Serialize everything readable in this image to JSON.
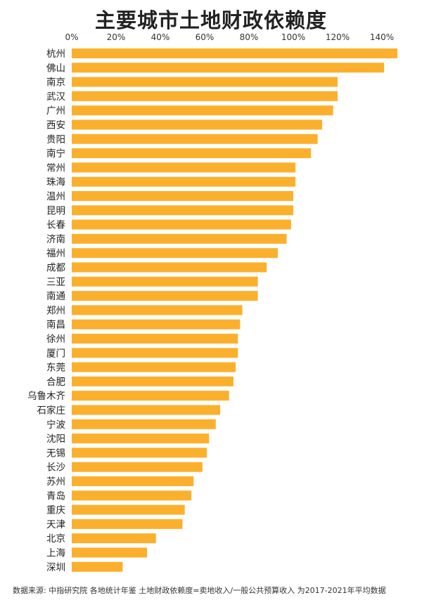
{
  "chart_data": {
    "type": "bar",
    "orientation": "horizontal",
    "title": "主要城市土地财政依赖度",
    "xlabel": "",
    "ylabel": "",
    "xlim": [
      0,
      150
    ],
    "x_ticks": [
      "0%",
      "20%",
      "40%",
      "60%",
      "80%",
      "100%",
      "120%",
      "140%"
    ],
    "tick_values": [
      0,
      20,
      40,
      60,
      80,
      100,
      120,
      140
    ],
    "axis_position": "top",
    "grid": false,
    "bar_color": "#fbb02d",
    "categories": [
      "杭州",
      "佛山",
      "南京",
      "武汉",
      "广州",
      "西安",
      "贵阳",
      "南宁",
      "常州",
      "珠海",
      "温州",
      "昆明",
      "长春",
      "济南",
      "福州",
      "成都",
      "三亚",
      "南通",
      "郑州",
      "南昌",
      "徐州",
      "厦门",
      "东莞",
      "合肥",
      "乌鲁木齐",
      "石家庄",
      "宁波",
      "沈阳",
      "无锡",
      "长沙",
      "苏州",
      "青岛",
      "重庆",
      "天津",
      "北京",
      "上海",
      "深圳"
    ],
    "values": [
      147,
      141,
      120,
      120,
      118,
      113,
      111,
      108,
      101,
      101,
      100,
      100,
      99,
      97,
      93,
      88,
      84,
      84,
      77,
      76,
      75,
      75,
      74,
      73,
      71,
      67,
      65,
      62,
      61,
      59,
      55,
      54,
      51,
      50,
      38,
      34,
      23
    ]
  },
  "footer": "数据来源: 中指研究院 各地统计年鉴  土地财政依赖度=卖地收入/一般公共预算收入 为2017-2021年平均数据"
}
